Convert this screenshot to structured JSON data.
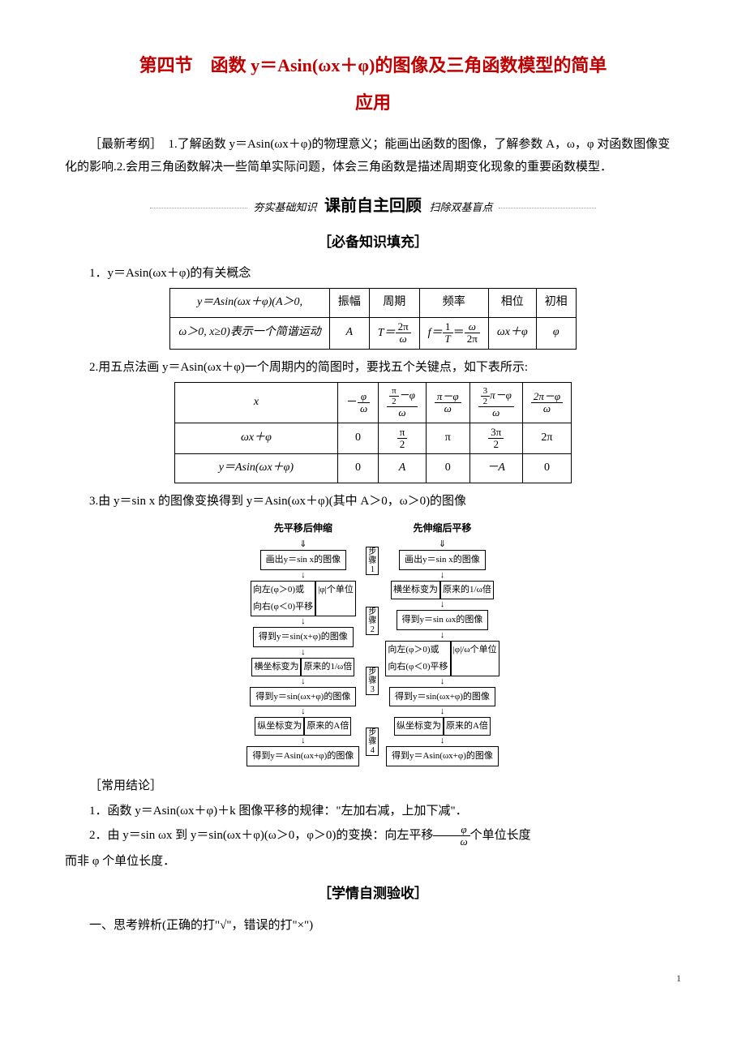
{
  "title_line1": "第四节　函数 y＝Asin(ωx＋φ)的图像及三角函数模型的简单",
  "title_line2": "应用",
  "intro": "［最新考纲］　1.了解函数 y＝Asin(ωx＋φ)的物理意义；能画出函数的图像，了解参数 A，ω，φ 对函数图像变化的影响.2.会用三角函数解决一些简单实际问题，体会三角函数是描述周期变化现象的重要函数模型．",
  "banner": {
    "left": "夯实基础知识",
    "mid": "课前自主回顾",
    "right": "扫除双基盲点"
  },
  "sec1": "［必备知识填充］",
  "p1": "1．y＝Asin(ωx＋φ)的有关概念",
  "t1": {
    "r1": [
      "y＝Asin(ωx＋φ)(A＞0,",
      "振幅",
      "周期",
      "频率",
      "相位",
      "初相"
    ],
    "r2_left": "ω＞0, x≥0)表示一个简谐运动",
    "r2": [
      "A",
      "T＝",
      "2π",
      "ω",
      "f＝",
      "1",
      "T",
      "＝",
      "ω",
      "2π",
      "ωx＋φ",
      "φ"
    ]
  },
  "p2": "2.用五点法画 y＝Asin(ωx＋φ)一个周期内的简图时，要找五个关键点，如下表所示:",
  "t2": {
    "h": [
      "x",
      "－",
      "φ",
      "ω",
      "π",
      "2",
      "－φ",
      "ω",
      "π－φ",
      "ω",
      "3",
      "2",
      "π－φ",
      "ω",
      "2π－φ",
      "ω"
    ],
    "r2": [
      "ωx＋φ",
      "0",
      "π",
      "2",
      "π",
      "3π",
      "2",
      "2π"
    ],
    "r3": [
      "y＝Asin(ωx＋φ)",
      "0",
      "A",
      "0",
      "－A",
      "0"
    ]
  },
  "p3": "3.由 y＝sin x 的图像变换得到 y＝Asin(ωx＋φ)(其中 A＞0，ω＞0)的图像",
  "diag": {
    "leftTitle": "先平移后伸缩",
    "rightTitle": "先伸缩后平移",
    "left": [
      {
        "box": "画出y＝sin x的图像"
      },
      {
        "lab": "向左(φ＞0)或\n向右(φ＜0)平移 | |φ|个单位"
      },
      {
        "box": "得到y＝sin(x+φ)的图像"
      },
      {
        "lab": "横坐标变为 | 原来的1/ω倍"
      },
      {
        "box": "得到y＝sin(ωx+φ)的图像"
      },
      {
        "lab": "纵坐标变为 | 原来的A倍"
      },
      {
        "box": "得到y＝Asin(ωx+φ)的图像"
      }
    ],
    "right": [
      {
        "box": "画出y＝sin x的图像"
      },
      {
        "lab": "横坐标变为 | 原来的1/ω倍"
      },
      {
        "box": "得到y＝sin ωx的图像"
      },
      {
        "lab": "向左(φ＞0)或\n向右(φ＜0)平移 | |φ|/ω个单位"
      },
      {
        "box": "得到y＝sin(ωx+φ)的图像"
      },
      {
        "lab": "纵坐标变为 | 原来的A倍"
      },
      {
        "box": "得到y＝Asin(ωx+φ)的图像"
      }
    ],
    "steps": [
      "步\n骤\n1",
      "步\n骤\n2",
      "步\n骤\n3",
      "步\n骤\n4"
    ]
  },
  "p4": "［常用结论］",
  "p5": "1．函数 y＝Asin(ωx＋φ)＋k 图像平移的规律：\"左加右减，上加下减\"．",
  "p6a": "2．由 y＝sin ωx 到 y＝sin(ωx＋φ)(ω＞0，φ＞0)的变换：向左平移",
  "p6_num": "φ",
  "p6_den": "ω",
  "p6b": "个单位长度",
  "p7": "而非 φ 个单位长度．",
  "sec2": "［学情自测验收］",
  "p8": "一、思考辨析(正确的打\"√\"，错误的打\"×\")",
  "pagenum": "1"
}
